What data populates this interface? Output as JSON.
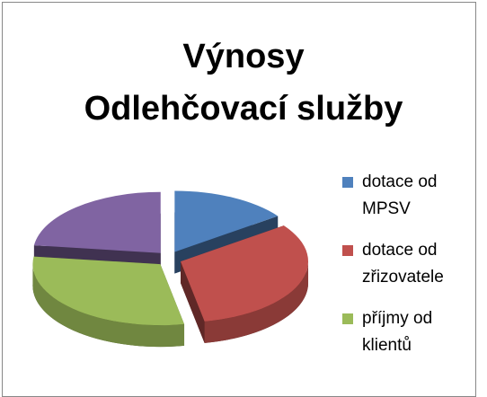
{
  "chart_data": {
    "type": "pie3d",
    "title": [
      "Výnosy",
      "Odlehčovací služby"
    ],
    "categories": [
      "dotace od MPSV",
      "dotace od zřizovatele",
      "příjmy od klientů",
      null
    ],
    "values": [
      15,
      32,
      30,
      23
    ],
    "colors": [
      "#4f81bd",
      "#c0504d",
      "#9bbb59",
      "#8064a2"
    ],
    "legend": "right"
  }
}
